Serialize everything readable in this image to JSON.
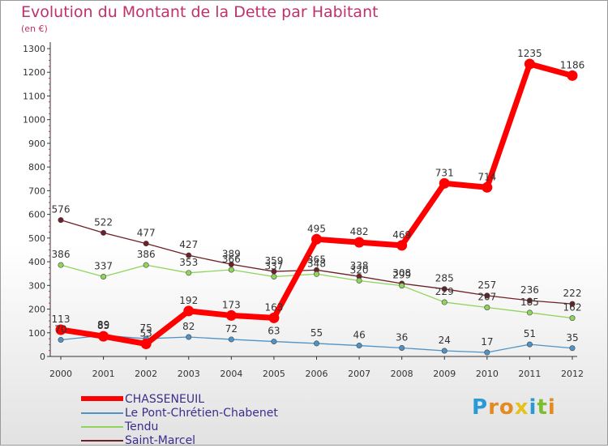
{
  "title": "Evolution du Montant de la Dette par Habitant",
  "subtitle": "(en €)",
  "logo": {
    "text": "Proxiti",
    "letters": [
      "P",
      "r",
      "o",
      "x",
      "i",
      "t",
      "i"
    ],
    "colors": [
      "#2a9ad6",
      "#e58a1f",
      "#e58a1f",
      "#e7c21a",
      "#2a9ad6",
      "#7bbf2e",
      "#e58a1f"
    ]
  },
  "chart_data": {
    "type": "line",
    "title": "Evolution du Montant de la Dette par Habitant",
    "subtitle": "(en €)",
    "xlabel": "",
    "ylabel": "",
    "x": [
      "2000",
      "2001",
      "2002",
      "2003",
      "2004",
      "2005",
      "2006",
      "2007",
      "2008",
      "2009",
      "2010",
      "2011",
      "2012"
    ],
    "ylim": [
      0,
      1300
    ],
    "yticks": [
      0,
      100,
      200,
      300,
      400,
      500,
      600,
      700,
      800,
      900,
      1000,
      1100,
      1200,
      1300
    ],
    "grid": false,
    "legend_position": "bottom-left",
    "series": [
      {
        "name": "Saint-Marcel",
        "color": "#6e1f28",
        "values": [
          576,
          522,
          477,
          427,
          389,
          359,
          365,
          338,
          308,
          285,
          257,
          236,
          222
        ],
        "labels": [
          "576",
          "522",
          "477",
          "427",
          "389",
          "359",
          "365",
          "338",
          "308",
          "285",
          "257",
          "236",
          "222"
        ]
      },
      {
        "name": "Tendu",
        "color": "#8fd45b",
        "values": [
          386,
          337,
          386,
          353,
          366,
          337,
          348,
          320,
          299,
          229,
          207,
          185,
          162
        ],
        "labels": [
          "386",
          "337",
          "386",
          "353",
          "366",
          "337",
          "348",
          "320",
          "299",
          "229",
          "207",
          "185",
          "162"
        ]
      },
      {
        "name": "Le Pont-Chrétien-Chabenet",
        "color": "#4f93c6",
        "values": [
          70,
          89,
          75,
          82,
          72,
          63,
          55,
          46,
          36,
          24,
          17,
          51,
          35
        ],
        "labels": [
          "70",
          "89",
          "75",
          "82",
          "72",
          "63",
          "55",
          "46",
          "36",
          "24",
          "17",
          "51",
          "35"
        ]
      },
      {
        "name": "CHASSENEUIL",
        "color": "#ff0000",
        "values": [
          113,
          85,
          53,
          192,
          173,
          163,
          495,
          482,
          469,
          731,
          714,
          1235,
          1186
        ],
        "labels": [
          "113",
          "85",
          "53",
          "192",
          "173",
          "163",
          "495",
          "482",
          "469",
          "731",
          "714",
          "1235",
          "1186"
        ]
      }
    ],
    "legend": [
      "CHASSENEUIL",
      "Le Pont-Chrétien-Chabenet",
      "Tendu",
      "Saint-Marcel"
    ]
  }
}
